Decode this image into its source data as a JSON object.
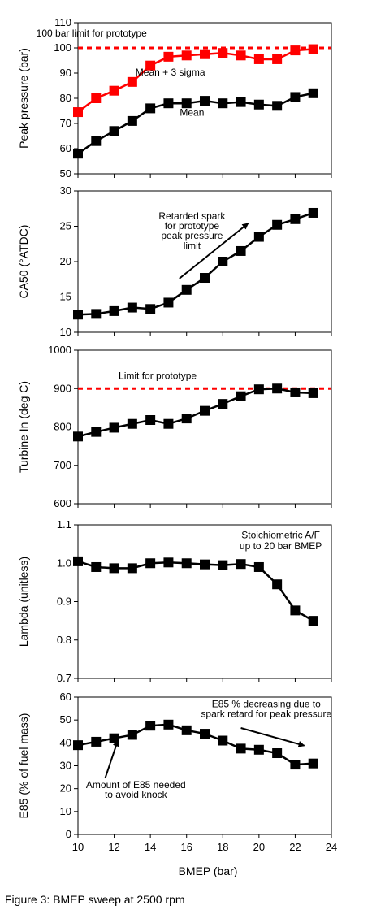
{
  "caption": "Figure 3: BMEP sweep at 2500 rpm",
  "chart_data": [
    {
      "type": "line",
      "xlim": [
        10,
        24
      ],
      "ylabel": "Peak pressure (bar)",
      "ylim": [
        50,
        110
      ],
      "yticks": [
        50,
        60,
        70,
        80,
        90,
        100,
        110
      ],
      "series": [
        {
          "color": "#ff0000",
          "x": [
            10,
            11,
            12,
            13,
            14,
            15,
            16,
            17,
            18,
            19,
            20,
            21,
            22,
            23
          ],
          "y": [
            74.5,
            80,
            83,
            86.5,
            93,
            96.5,
            97,
            97.5,
            98,
            97,
            95.5,
            95.5,
            99,
            99.5
          ]
        },
        {
          "color": "#000000",
          "x": [
            10,
            11,
            12,
            13,
            14,
            15,
            16,
            17,
            18,
            19,
            20,
            21,
            22,
            23
          ],
          "y": [
            58,
            63,
            67,
            71,
            76,
            78,
            78,
            79,
            78,
            78.5,
            77.5,
            77,
            80.5,
            82
          ]
        }
      ],
      "limit_line": {
        "y": 100,
        "color": "#ff0000"
      },
      "annotations": [
        {
          "text": "100 bar limit for prototype",
          "x": 10.75,
          "y": 104.5
        },
        {
          "text": "Mean + 3 sigma",
          "x": 15.1,
          "y": 89
        },
        {
          "text": "Mean",
          "x": 16.3,
          "y": 73
        }
      ]
    },
    {
      "type": "line",
      "xlim": [
        10,
        24
      ],
      "ylabel": "CA50 (°ATDC)",
      "ylim": [
        10,
        30
      ],
      "yticks": [
        10,
        15,
        20,
        25,
        30
      ],
      "series": [
        {
          "color": "#000000",
          "x": [
            10,
            11,
            12,
            13,
            14,
            15,
            16,
            17,
            18,
            19,
            20,
            21,
            22,
            23
          ],
          "y": [
            12.5,
            12.6,
            13,
            13.5,
            13.3,
            14.2,
            16,
            17.7,
            20,
            21.5,
            23.5,
            25.2,
            26,
            26.9
          ]
        }
      ],
      "annotations": [
        {
          "text": "Retarded spark",
          "x": 16.3,
          "y": 26
        },
        {
          "text": "for prototype",
          "x": 16.3,
          "y": 24.6
        },
        {
          "text": "peak pressure",
          "x": 16.3,
          "y": 23.2
        },
        {
          "text": "limit",
          "x": 16.3,
          "y": 21.8
        }
      ],
      "arrows": [
        {
          "from": [
            15.6,
            17.6
          ],
          "to": [
            19.4,
            25.4
          ]
        }
      ]
    },
    {
      "type": "line",
      "xlim": [
        10,
        24
      ],
      "ylabel": "Turbine In (deg C)",
      "ylim": [
        600,
        1000
      ],
      "yticks": [
        600,
        700,
        800,
        900,
        1000
      ],
      "series": [
        {
          "color": "#000000",
          "x": [
            10,
            11,
            12,
            13,
            14,
            15,
            16,
            17,
            18,
            19,
            20,
            21,
            22,
            23
          ],
          "y": [
            775,
            787,
            798,
            808,
            818,
            808,
            822,
            842,
            860,
            880,
            898,
            900,
            890,
            888
          ]
        }
      ],
      "limit_line": {
        "y": 900,
        "color": "#ff0000"
      },
      "annotations": [
        {
          "text": "Limit for prototype",
          "x": 14.4,
          "y": 925
        }
      ]
    },
    {
      "type": "line",
      "xlim": [
        10,
        24
      ],
      "ylabel": "Lambda (unitless)",
      "ylim": [
        0.7,
        1.1
      ],
      "yticks": [
        "0.7",
        "0.8",
        "0.9",
        "1.0",
        "1.1"
      ],
      "series": [
        {
          "color": "#000000",
          "x": [
            10,
            11,
            12,
            13,
            14,
            15,
            16,
            17,
            18,
            19,
            20,
            21,
            22,
            23
          ],
          "y": [
            1.005,
            0.99,
            0.987,
            0.987,
            1.0,
            1.002,
            1.0,
            0.997,
            0.995,
            0.998,
            0.99,
            0.945,
            0.877,
            0.85
          ]
        }
      ],
      "annotations": [
        {
          "text": "Stoichiometric A/F",
          "x": 21.2,
          "y": 1.065
        },
        {
          "text": "up to 20 bar BMEP",
          "x": 21.2,
          "y": 1.036
        }
      ]
    },
    {
      "type": "line",
      "xlim": [
        10,
        24
      ],
      "xlabel": "BMEP (bar)",
      "xticks": [
        10,
        12,
        14,
        16,
        18,
        20,
        22,
        24
      ],
      "ylabel": "E85 (% of fuel mass)",
      "ylim": [
        0,
        60
      ],
      "yticks": [
        0,
        10,
        20,
        30,
        40,
        50,
        60
      ],
      "series": [
        {
          "color": "#000000",
          "x": [
            10,
            11,
            12,
            13,
            14,
            15,
            16,
            17,
            18,
            19,
            20,
            21,
            22,
            23
          ],
          "y": [
            39,
            40.5,
            42,
            43.5,
            47.5,
            48,
            45.5,
            44,
            41,
            37.5,
            37,
            35.5,
            30.5,
            31
          ]
        }
      ],
      "annotations": [
        {
          "text": "E85 % decreasing due to",
          "x": 20.4,
          "y": 55.5
        },
        {
          "text": "spark retard for peak pressure",
          "x": 20.4,
          "y": 51.3
        },
        {
          "text": "Amount of E85 needed",
          "x": 13.2,
          "y": 20.3
        },
        {
          "text": "to avoid knock",
          "x": 13.2,
          "y": 16
        }
      ],
      "arrows": [
        {
          "from": [
            19.0,
            46.5
          ],
          "to": [
            22.5,
            38.8
          ]
        },
        {
          "from": [
            11.5,
            24.5
          ],
          "to": [
            12.2,
            41.0
          ]
        }
      ]
    }
  ]
}
